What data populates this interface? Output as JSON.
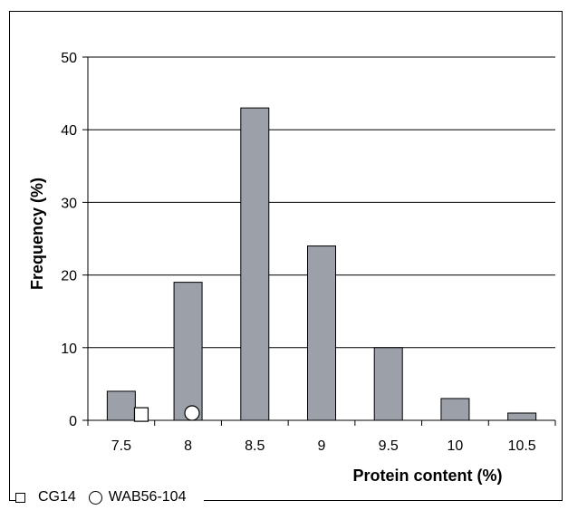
{
  "chart_data": {
    "type": "bar",
    "categories": [
      "7.5",
      "8",
      "8.5",
      "9",
      "9.5",
      "10",
      "10.5"
    ],
    "values": [
      4,
      19,
      43,
      24,
      10,
      3,
      1
    ],
    "xlabel": "Protein content (%)",
    "ylabel": "Frequency (%)",
    "ylim": [
      0,
      50
    ],
    "yticks": [
      0,
      10,
      20,
      30,
      40,
      50
    ],
    "grid": true,
    "bar_color": "#9ca0a8",
    "markers": [
      {
        "name": "CG14",
        "shape": "square",
        "x": 7.65,
        "y": 0.8
      },
      {
        "name": "WAB56-104",
        "shape": "circle",
        "x": 8.03,
        "y": 1
      }
    ]
  },
  "legend": [
    {
      "label": "CG14",
      "shape": "square"
    },
    {
      "label": "WAB56-104",
      "shape": "circle"
    }
  ]
}
